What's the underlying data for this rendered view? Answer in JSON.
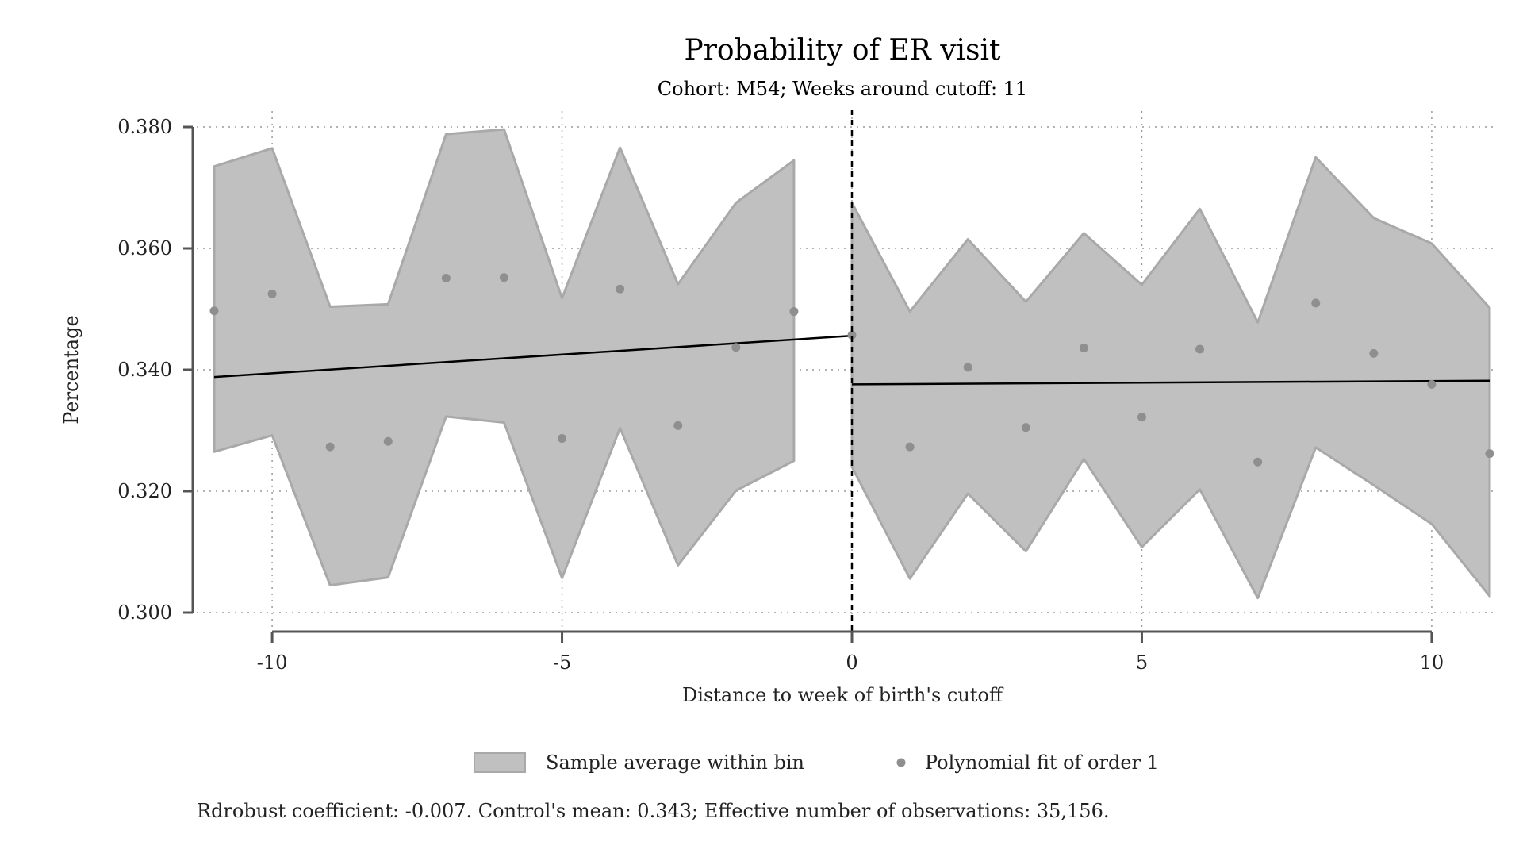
{
  "chart_data": {
    "type": "scatter",
    "title": "Probability of ER visit",
    "subtitle": "Cohort: M54; Weeks around cutoff: 11",
    "xlabel": "Distance to week of birth's cutoff",
    "ylabel": "Percentage",
    "xlim": [
      -11,
      11
    ],
    "ylim": [
      0.3,
      0.38
    ],
    "x_ticks": [
      -10,
      -5,
      0,
      5,
      10
    ],
    "x_tick_labels": [
      "-10",
      "-5",
      "0",
      "5",
      "10"
    ],
    "y_ticks": [
      0.3,
      0.32,
      0.34,
      0.36,
      0.38
    ],
    "y_tick_labels": [
      "0.300",
      "0.320",
      "0.340",
      "0.360",
      "0.380"
    ],
    "grid": true,
    "cutoff_x": 0,
    "legend_position": "bottom",
    "legend": [
      "Sample average within bin",
      "Polynomial fit of order 1"
    ],
    "points": {
      "x": [
        -11,
        -10,
        -9,
        -8,
        -7,
        -6,
        -5,
        -4,
        -3,
        -2,
        -1,
        0,
        1,
        2,
        3,
        4,
        5,
        6,
        7,
        8,
        9,
        10,
        11
      ],
      "y": [
        0.3497,
        0.3525,
        0.3273,
        0.3282,
        0.3551,
        0.3552,
        0.3287,
        0.3533,
        0.3308,
        0.3437,
        0.3496,
        0.3457,
        0.3273,
        0.3404,
        0.3305,
        0.3436,
        0.3322,
        0.3434,
        0.3248,
        0.351,
        0.3427,
        0.3376,
        0.3262
      ]
    },
    "ci_band": {
      "left": {
        "x": [
          -11,
          -10,
          -9,
          -8,
          -7,
          -6,
          -5,
          -4,
          -3,
          -2,
          -1
        ],
        "upper": [
          0.3735,
          0.3765,
          0.3504,
          0.3508,
          0.3788,
          0.3796,
          0.3518,
          0.3766,
          0.3541,
          0.3675,
          0.3745
        ],
        "lower": [
          0.3265,
          0.3292,
          0.3045,
          0.3058,
          0.3323,
          0.3313,
          0.3057,
          0.3304,
          0.3078,
          0.3201,
          0.325
        ]
      },
      "right": {
        "x": [
          0,
          1,
          2,
          3,
          4,
          5,
          6,
          7,
          8,
          9,
          10,
          11
        ],
        "upper": [
          0.3675,
          0.3496,
          0.3615,
          0.3512,
          0.3625,
          0.354,
          0.3665,
          0.3478,
          0.375,
          0.365,
          0.3608,
          0.3502
        ],
        "lower": [
          0.324,
          0.3056,
          0.3196,
          0.3101,
          0.3253,
          0.3108,
          0.3203,
          0.3024,
          0.3272,
          0.321,
          0.3146,
          0.3027
        ]
      }
    },
    "fit_lines": {
      "left": {
        "x": [
          -11,
          0
        ],
        "y": [
          0.3388,
          0.3456
        ]
      },
      "right": {
        "x": [
          0,
          11
        ],
        "y": [
          0.3376,
          0.3382
        ]
      }
    },
    "note": "Rdrobust coefficient: -0.007. Control's mean: 0.343; Effective number of observations: 35,156.",
    "colors": {
      "band_fill": "#c0c0c0",
      "band_stroke": "#a9a9a9",
      "points": "#8f8f8f",
      "fit_line": "#000000",
      "axis": "#555555",
      "grid": "#9a9a9a"
    }
  }
}
